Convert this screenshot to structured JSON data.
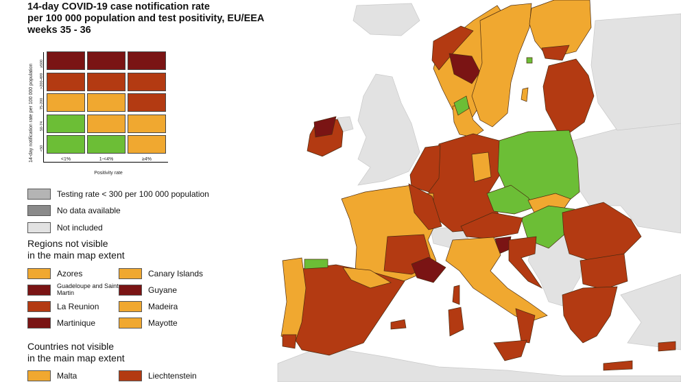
{
  "title": {
    "line1": "14-day COVID-19 case notification rate",
    "line2": "per 100 000 population and test positivity, EU/EEA",
    "line3": "weeks 35 - 36"
  },
  "colors": {
    "dark_red": "#7a1414",
    "red": "#b33a12",
    "orange": "#f0a830",
    "green": "#6cbe36",
    "grey_testing": "#b4b4b4",
    "grey_nodata": "#8a8a8a",
    "not_included": "#e2e2e2",
    "sea": "#ffffff"
  },
  "matrix": {
    "y_axis_title": "14-day notification rate per 100 000 population",
    "x_axis_title": "Positivity rate",
    "row_labels": [
      "≥500",
      ">200-499",
      "75-200",
      "50-74",
      "<50"
    ],
    "column_labels": [
      "<1%",
      "1-<4%",
      "≥4%"
    ],
    "cells": [
      [
        "dark_red",
        "dark_red",
        "dark_red"
      ],
      [
        "red",
        "red",
        "red"
      ],
      [
        "orange",
        "orange",
        "red"
      ],
      [
        "green",
        "orange",
        "orange"
      ],
      [
        "green",
        "green",
        "orange"
      ]
    ]
  },
  "legend": {
    "testing_rate": "Testing rate < 300 per 100 000 population",
    "no_data": "No data available",
    "not_included": "Not included"
  },
  "regions_section": {
    "title_line1": "Regions not visible",
    "title_line2": "in the main map extent",
    "items": [
      {
        "label": "Azores",
        "color": "orange"
      },
      {
        "label": "Canary Islands",
        "color": "orange"
      },
      {
        "label": "Guadeloupe and Saint Martin",
        "color": "dark_red"
      },
      {
        "label": "Guyane",
        "color": "dark_red"
      },
      {
        "label": "La Reunion",
        "color": "red"
      },
      {
        "label": "Madeira",
        "color": "orange"
      },
      {
        "label": "Martinique",
        "color": "dark_red"
      },
      {
        "label": "Mayotte",
        "color": "orange"
      }
    ]
  },
  "countries_section": {
    "title_line1": "Countries not visible",
    "title_line2": "in the main map extent",
    "items": [
      {
        "label": "Malta",
        "color": "orange"
      },
      {
        "label": "Liechtenstein",
        "color": "red"
      }
    ]
  },
  "map_regions": [
    {
      "name": "iceland-not-included",
      "color": "not_included"
    },
    {
      "name": "united-kingdom-not-included",
      "color": "not_included"
    },
    {
      "name": "northern-ireland-not-included",
      "color": "not_included"
    },
    {
      "name": "switzerland-not-included",
      "color": "not_included"
    },
    {
      "name": "balkans-not-included",
      "color": "not_included"
    },
    {
      "name": "belarus-ukraine-not-included",
      "color": "not_included"
    },
    {
      "name": "russia-not-included",
      "color": "not_included"
    },
    {
      "name": "north-africa-not-included",
      "color": "not_included"
    },
    {
      "name": "turkey-not-included",
      "color": "not_included"
    },
    {
      "name": "ireland",
      "color": "red"
    },
    {
      "name": "ireland-northwest",
      "color": "dark_red"
    },
    {
      "name": "norway",
      "color": "orange"
    },
    {
      "name": "norway-west",
      "color": "red"
    },
    {
      "name": "norway-oslo",
      "color": "dark_red"
    },
    {
      "name": "sweden",
      "color": "orange"
    },
    {
      "name": "finland",
      "color": "orange"
    },
    {
      "name": "finland-south",
      "color": "red"
    },
    {
      "name": "estonia-latvia-lithuania",
      "color": "red"
    },
    {
      "name": "denmark",
      "color": "orange"
    },
    {
      "name": "denmark-north",
      "color": "green"
    },
    {
      "name": "gotland",
      "color": "orange"
    },
    {
      "name": "aland",
      "color": "green"
    },
    {
      "name": "germany",
      "color": "red"
    },
    {
      "name": "germany-east",
      "color": "orange"
    },
    {
      "name": "netherlands-belgium",
      "color": "red"
    },
    {
      "name": "luxembourg",
      "color": "orange"
    },
    {
      "name": "poland",
      "color": "green"
    },
    {
      "name": "czechia",
      "color": "green"
    },
    {
      "name": "slovakia",
      "color": "orange"
    },
    {
      "name": "hungary",
      "color": "green"
    },
    {
      "name": "austria",
      "color": "red"
    },
    {
      "name": "slovenia",
      "color": "dark_red"
    },
    {
      "name": "croatia",
      "color": "red"
    },
    {
      "name": "france",
      "color": "orange"
    },
    {
      "name": "france-east",
      "color": "red"
    },
    {
      "name": "france-southcentral",
      "color": "red"
    },
    {
      "name": "france-southeast",
      "color": "dark_red"
    },
    {
      "name": "corsica",
      "color": "red"
    },
    {
      "name": "spain",
      "color": "red"
    },
    {
      "name": "spain-north",
      "color": "orange"
    },
    {
      "name": "spain-northcoast",
      "color": "green"
    },
    {
      "name": "portugal",
      "color": "orange"
    },
    {
      "name": "portugal-south",
      "color": "red"
    },
    {
      "name": "balearic-islands",
      "color": "red"
    },
    {
      "name": "italy",
      "color": "orange"
    },
    {
      "name": "italy-south",
      "color": "red"
    },
    {
      "name": "sardinia",
      "color": "red"
    },
    {
      "name": "sicily",
      "color": "red"
    },
    {
      "name": "romania",
      "color": "red"
    },
    {
      "name": "bulgaria",
      "color": "red"
    },
    {
      "name": "greece",
      "color": "red"
    },
    {
      "name": "crete",
      "color": "red"
    },
    {
      "name": "cyprus",
      "color": "red"
    }
  ]
}
